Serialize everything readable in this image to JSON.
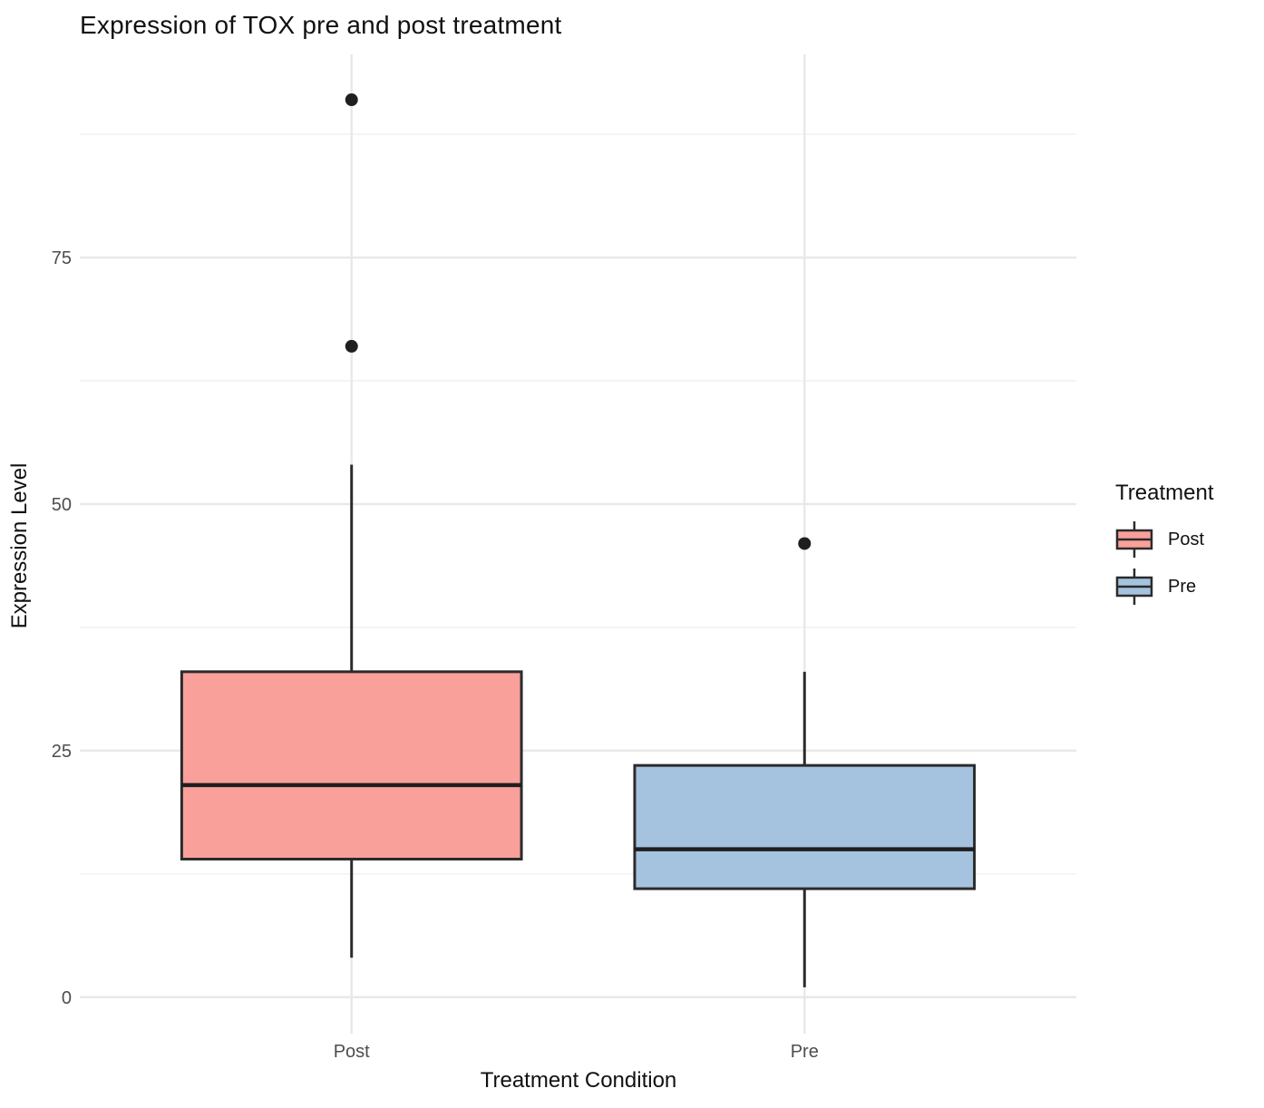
{
  "chart_data": {
    "type": "boxplot",
    "title": "Expression of TOX pre and post treatment",
    "xlabel": "Treatment Condition",
    "ylabel": "Expression Level",
    "legend_title": "Treatment",
    "legend_position": "right",
    "categories": [
      "Post",
      "Pre"
    ],
    "yticks": [
      0,
      25,
      50,
      75
    ],
    "yticks_minor": [
      12.5,
      37.5,
      62.5,
      87.5
    ],
    "ylim": [
      -3.7,
      95.6
    ],
    "grid": true,
    "series": [
      {
        "name": "Post",
        "fill": "#F9A09A",
        "whisker_low": 4,
        "q1": 14,
        "median": 21.5,
        "q3": 33,
        "whisker_high": 54,
        "outliers": [
          66,
          91
        ]
      },
      {
        "name": "Pre",
        "fill": "#A5C3DF",
        "whisker_low": 1,
        "q1": 11,
        "median": 15,
        "q3": 23.5,
        "whisker_high": 33,
        "outliers": [
          46
        ]
      }
    ],
    "colors": {
      "box_border": "#2B2B2B",
      "median_line": "#1F1F1F",
      "outlier": "#1F1F1F",
      "grid_major": "#E8E8E8",
      "grid_minor": "#F1F1F1",
      "tick_label": "#4D4D4D",
      "background": "#FFFFFF"
    }
  }
}
